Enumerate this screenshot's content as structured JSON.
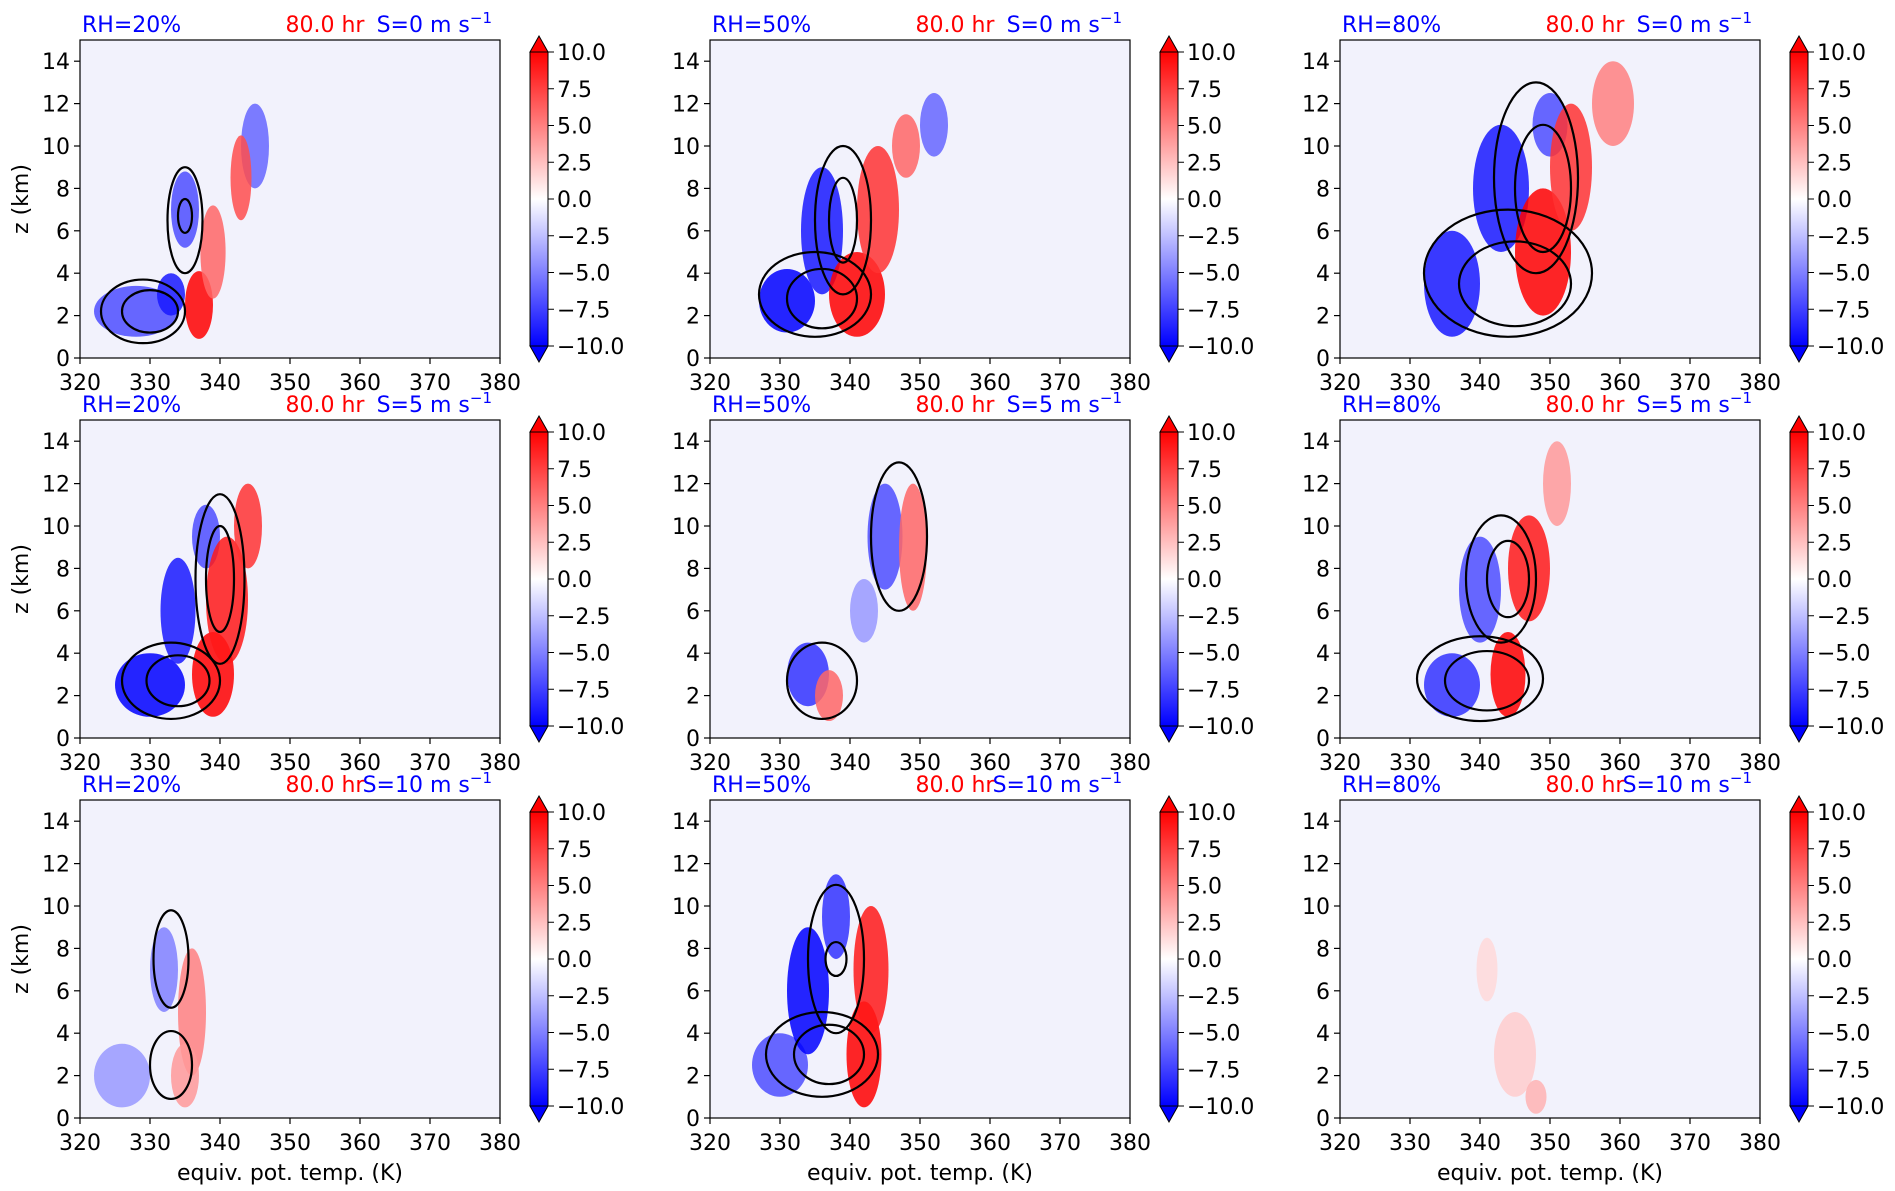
{
  "figure": {
    "colors": {
      "rh": "#0000ff",
      "time": "#ff0000",
      "shear": "#0000ff",
      "contour": "#000000",
      "background": "#f2f2fc"
    },
    "colorbar": {
      "ticks": [
        "10.0",
        "7.5",
        "5.0",
        "2.5",
        "0.0",
        "−2.5",
        "−5.0",
        "−7.5",
        "−10.0"
      ],
      "min": -10,
      "max": 10,
      "colormap": "bwr",
      "extend": "both"
    }
  },
  "chart_data": [
    {
      "type": "heatmap",
      "row": 0,
      "col": 0,
      "rh_label": "RH=20%",
      "time_label": "80.0 hr",
      "shear_label": "S=0 m s",
      "shear_exp": "−1",
      "xlim": [
        320,
        380
      ],
      "ylim": [
        0,
        15
      ],
      "xticks": [
        "320",
        "330",
        "340",
        "350",
        "360",
        "370",
        "380"
      ],
      "yticks": [
        "0",
        "2",
        "4",
        "6",
        "8",
        "10",
        "12",
        "14"
      ],
      "xlabel": "",
      "ylabel": "z (km)",
      "blobs": [
        {
          "x": 328,
          "y": 2.2,
          "rx": 6,
          "ry": 1.2,
          "v": -7
        },
        {
          "x": 333,
          "y": 3,
          "rx": 2,
          "ry": 1,
          "v": -9
        },
        {
          "x": 335,
          "y": 7,
          "rx": 2,
          "ry": 1.8,
          "v": -7
        },
        {
          "x": 337,
          "y": 2.5,
          "rx": 2,
          "ry": 1.6,
          "v": 10
        },
        {
          "x": 339,
          "y": 5,
          "rx": 1.8,
          "ry": 2.2,
          "v": 6
        },
        {
          "x": 345,
          "y": 10,
          "rx": 2,
          "ry": 2,
          "v": -6
        },
        {
          "x": 343,
          "y": 8.5,
          "rx": 1.5,
          "ry": 2,
          "v": 7
        }
      ],
      "contours": [
        {
          "x": 329,
          "y": 2.2,
          "rx": 6,
          "ry": 1.5
        },
        {
          "x": 330,
          "y": 2.2,
          "rx": 4,
          "ry": 1
        },
        {
          "x": 335,
          "y": 6.5,
          "rx": 2.5,
          "ry": 2.5
        },
        {
          "x": 335,
          "y": 6.7,
          "rx": 1,
          "ry": 0.8
        }
      ]
    },
    {
      "type": "heatmap",
      "row": 0,
      "col": 1,
      "rh_label": "RH=50%",
      "time_label": "80.0 hr",
      "shear_label": "S=0 m s",
      "shear_exp": "−1",
      "xlim": [
        320,
        380
      ],
      "ylim": [
        0,
        15
      ],
      "xticks": [
        "320",
        "330",
        "340",
        "350",
        "360",
        "370",
        "380"
      ],
      "yticks": [
        "0",
        "2",
        "4",
        "6",
        "8",
        "10",
        "12",
        "14"
      ],
      "xlabel": "",
      "ylabel": "",
      "blobs": [
        {
          "x": 331,
          "y": 2.7,
          "rx": 4,
          "ry": 1.5,
          "v": -10
        },
        {
          "x": 336,
          "y": 6,
          "rx": 3,
          "ry": 3,
          "v": -9
        },
        {
          "x": 341,
          "y": 3,
          "rx": 4,
          "ry": 2,
          "v": 10
        },
        {
          "x": 344,
          "y": 7,
          "rx": 3,
          "ry": 3,
          "v": 8
        },
        {
          "x": 352,
          "y": 11,
          "rx": 2,
          "ry": 1.5,
          "v": -6
        },
        {
          "x": 348,
          "y": 10,
          "rx": 2,
          "ry": 1.5,
          "v": 6
        }
      ],
      "contours": [
        {
          "x": 335,
          "y": 3,
          "rx": 8,
          "ry": 2
        },
        {
          "x": 336,
          "y": 2.8,
          "rx": 5,
          "ry": 1.4
        },
        {
          "x": 339,
          "y": 6.5,
          "rx": 4,
          "ry": 3.5
        },
        {
          "x": 339,
          "y": 6.5,
          "rx": 2,
          "ry": 2
        }
      ]
    },
    {
      "type": "heatmap",
      "row": 0,
      "col": 2,
      "rh_label": "RH=80%",
      "time_label": "80.0 hr",
      "shear_label": "S=0 m s",
      "shear_exp": "−1",
      "xlim": [
        320,
        380
      ],
      "ylim": [
        0,
        15
      ],
      "xticks": [
        "320",
        "330",
        "340",
        "350",
        "360",
        "370",
        "380"
      ],
      "yticks": [
        "0",
        "2",
        "4",
        "6",
        "8",
        "10",
        "12",
        "14"
      ],
      "xlabel": "",
      "ylabel": "",
      "blobs": [
        {
          "x": 336,
          "y": 3.5,
          "rx": 4,
          "ry": 2.5,
          "v": -9
        },
        {
          "x": 343,
          "y": 8,
          "rx": 4,
          "ry": 3,
          "v": -9
        },
        {
          "x": 350,
          "y": 11,
          "rx": 2.5,
          "ry": 1.5,
          "v": -7
        },
        {
          "x": 349,
          "y": 5,
          "rx": 4,
          "ry": 3,
          "v": 10
        },
        {
          "x": 353,
          "y": 9,
          "rx": 3,
          "ry": 3,
          "v": 8
        },
        {
          "x": 359,
          "y": 12,
          "rx": 3,
          "ry": 2,
          "v": 5
        }
      ],
      "contours": [
        {
          "x": 344,
          "y": 4,
          "rx": 12,
          "ry": 3
        },
        {
          "x": 345,
          "y": 3.5,
          "rx": 8,
          "ry": 2
        },
        {
          "x": 348,
          "y": 8.5,
          "rx": 6,
          "ry": 4.5
        },
        {
          "x": 349,
          "y": 8,
          "rx": 4,
          "ry": 3
        }
      ]
    },
    {
      "type": "heatmap",
      "row": 1,
      "col": 0,
      "rh_label": "RH=20%",
      "time_label": "80.0 hr",
      "shear_label": "S=5 m s",
      "shear_exp": "−1",
      "xlim": [
        320,
        380
      ],
      "ylim": [
        0,
        15
      ],
      "xticks": [
        "320",
        "330",
        "340",
        "350",
        "360",
        "370",
        "380"
      ],
      "yticks": [
        "0",
        "2",
        "4",
        "6",
        "8",
        "10",
        "12",
        "14"
      ],
      "xlabel": "",
      "ylabel": "z (km)",
      "blobs": [
        {
          "x": 330,
          "y": 2.5,
          "rx": 5,
          "ry": 1.5,
          "v": -10
        },
        {
          "x": 334,
          "y": 6,
          "rx": 2.5,
          "ry": 2.5,
          "v": -9
        },
        {
          "x": 338,
          "y": 9.5,
          "rx": 2,
          "ry": 1.5,
          "v": -7
        },
        {
          "x": 339,
          "y": 3,
          "rx": 3,
          "ry": 2,
          "v": 10
        },
        {
          "x": 341,
          "y": 6.5,
          "rx": 3,
          "ry": 3,
          "v": 9
        },
        {
          "x": 344,
          "y": 10,
          "rx": 2,
          "ry": 2,
          "v": 8
        }
      ],
      "contours": [
        {
          "x": 333,
          "y": 2.7,
          "rx": 7,
          "ry": 1.8
        },
        {
          "x": 334,
          "y": 2.7,
          "rx": 4.5,
          "ry": 1.2
        },
        {
          "x": 340,
          "y": 7.5,
          "rx": 3.5,
          "ry": 4
        },
        {
          "x": 340,
          "y": 7.5,
          "rx": 2,
          "ry": 2.5
        }
      ]
    },
    {
      "type": "heatmap",
      "row": 1,
      "col": 1,
      "rh_label": "RH=50%",
      "time_label": "80.0 hr",
      "shear_label": "S=5 m s",
      "shear_exp": "−1",
      "xlim": [
        320,
        380
      ],
      "ylim": [
        0,
        15
      ],
      "xticks": [
        "320",
        "330",
        "340",
        "350",
        "360",
        "370",
        "380"
      ],
      "yticks": [
        "0",
        "2",
        "4",
        "6",
        "8",
        "10",
        "12",
        "14"
      ],
      "xlabel": "",
      "ylabel": "",
      "blobs": [
        {
          "x": 334,
          "y": 3,
          "rx": 3,
          "ry": 1.5,
          "v": -8
        },
        {
          "x": 337,
          "y": 2,
          "rx": 2,
          "ry": 1.2,
          "v": 6
        },
        {
          "x": 345,
          "y": 9.5,
          "rx": 2.5,
          "ry": 2.5,
          "v": -7
        },
        {
          "x": 349,
          "y": 9,
          "rx": 2,
          "ry": 3,
          "v": 6
        },
        {
          "x": 342,
          "y": 6,
          "rx": 2,
          "ry": 1.5,
          "v": -4
        }
      ],
      "contours": [
        {
          "x": 336,
          "y": 2.7,
          "rx": 5,
          "ry": 1.8
        },
        {
          "x": 347,
          "y": 9.5,
          "rx": 4,
          "ry": 3.5
        }
      ]
    },
    {
      "type": "heatmap",
      "row": 1,
      "col": 2,
      "rh_label": "RH=80%",
      "time_label": "80.0 hr",
      "shear_label": "S=5 m s",
      "shear_exp": "−1",
      "xlim": [
        320,
        380
      ],
      "ylim": [
        0,
        15
      ],
      "xticks": [
        "320",
        "330",
        "340",
        "350",
        "360",
        "370",
        "380"
      ],
      "yticks": [
        "0",
        "2",
        "4",
        "6",
        "8",
        "10",
        "12",
        "14"
      ],
      "xlabel": "",
      "ylabel": "",
      "blobs": [
        {
          "x": 336,
          "y": 2.5,
          "rx": 4,
          "ry": 1.5,
          "v": -8
        },
        {
          "x": 340,
          "y": 7,
          "rx": 3,
          "ry": 2.5,
          "v": -7
        },
        {
          "x": 344,
          "y": 3,
          "rx": 2.5,
          "ry": 2,
          "v": 10
        },
        {
          "x": 347,
          "y": 8,
          "rx": 3,
          "ry": 2.5,
          "v": 9
        },
        {
          "x": 351,
          "y": 12,
          "rx": 2,
          "ry": 2,
          "v": 4
        }
      ],
      "contours": [
        {
          "x": 340,
          "y": 2.8,
          "rx": 9,
          "ry": 2
        },
        {
          "x": 341,
          "y": 2.7,
          "rx": 6,
          "ry": 1.4
        },
        {
          "x": 343,
          "y": 7.5,
          "rx": 5,
          "ry": 3
        },
        {
          "x": 344,
          "y": 7.5,
          "rx": 3,
          "ry": 1.8
        }
      ]
    },
    {
      "type": "heatmap",
      "row": 2,
      "col": 0,
      "rh_label": "RH=20%",
      "time_label": "80.0 hr",
      "shear_label": "S=10 m s",
      "shear_exp": "−1",
      "xlim": [
        320,
        380
      ],
      "ylim": [
        0,
        15
      ],
      "xticks": [
        "320",
        "330",
        "340",
        "350",
        "360",
        "370",
        "380"
      ],
      "yticks": [
        "0",
        "2",
        "4",
        "6",
        "8",
        "10",
        "12",
        "14"
      ],
      "xlabel": "equiv. pot. temp. (K)",
      "ylabel": "z (km)",
      "blobs": [
        {
          "x": 326,
          "y": 2,
          "rx": 4,
          "ry": 1.5,
          "v": -4
        },
        {
          "x": 332,
          "y": 7,
          "rx": 2,
          "ry": 2,
          "v": -5
        },
        {
          "x": 336,
          "y": 5,
          "rx": 2,
          "ry": 3,
          "v": 5
        },
        {
          "x": 335,
          "y": 2,
          "rx": 2,
          "ry": 1.5,
          "v": 4
        }
      ],
      "contours": [
        {
          "x": 333,
          "y": 7.5,
          "rx": 2.5,
          "ry": 2.3
        },
        {
          "x": 333,
          "y": 2.5,
          "rx": 3,
          "ry": 1.6
        }
      ]
    },
    {
      "type": "heatmap",
      "row": 2,
      "col": 1,
      "rh_label": "RH=50%",
      "time_label": "80.0 hr",
      "shear_label": "S=10 m s",
      "shear_exp": "−1",
      "xlim": [
        320,
        380
      ],
      "ylim": [
        0,
        15
      ],
      "xticks": [
        "320",
        "330",
        "340",
        "350",
        "360",
        "370",
        "380"
      ],
      "yticks": [
        "0",
        "2",
        "4",
        "6",
        "8",
        "10",
        "12",
        "14"
      ],
      "xlabel": "equiv. pot. temp. (K)",
      "ylabel": "",
      "blobs": [
        {
          "x": 330,
          "y": 2.5,
          "rx": 4,
          "ry": 1.5,
          "v": -7
        },
        {
          "x": 334,
          "y": 6,
          "rx": 3,
          "ry": 3,
          "v": -10
        },
        {
          "x": 338,
          "y": 9.5,
          "rx": 2,
          "ry": 2,
          "v": -8
        },
        {
          "x": 342,
          "y": 3,
          "rx": 2.5,
          "ry": 2.5,
          "v": 10
        },
        {
          "x": 343,
          "y": 7,
          "rx": 2.5,
          "ry": 3,
          "v": 9
        }
      ],
      "contours": [
        {
          "x": 336,
          "y": 3,
          "rx": 8,
          "ry": 2
        },
        {
          "x": 337,
          "y": 3,
          "rx": 5,
          "ry": 1.4
        },
        {
          "x": 338,
          "y": 7.5,
          "rx": 4,
          "ry": 3.5
        },
        {
          "x": 338,
          "y": 7.5,
          "rx": 1.5,
          "ry": 0.8
        }
      ]
    },
    {
      "type": "heatmap",
      "row": 2,
      "col": 2,
      "rh_label": "RH=80%",
      "time_label": "80.0 hr",
      "shear_label": "S=10 m s",
      "shear_exp": "−1",
      "xlim": [
        320,
        380
      ],
      "ylim": [
        0,
        15
      ],
      "xticks": [
        "320",
        "330",
        "340",
        "350",
        "360",
        "370",
        "380"
      ],
      "yticks": [
        "0",
        "2",
        "4",
        "6",
        "8",
        "10",
        "12",
        "14"
      ],
      "xlabel": "equiv. pot. temp. (K)",
      "ylabel": "",
      "blobs": [
        {
          "x": 345,
          "y": 3,
          "rx": 3,
          "ry": 2,
          "v": 2
        },
        {
          "x": 348,
          "y": 1,
          "rx": 1.5,
          "ry": 0.8,
          "v": 3
        },
        {
          "x": 341,
          "y": 7,
          "rx": 1.5,
          "ry": 1.5,
          "v": 1.5
        }
      ],
      "contours": []
    }
  ]
}
